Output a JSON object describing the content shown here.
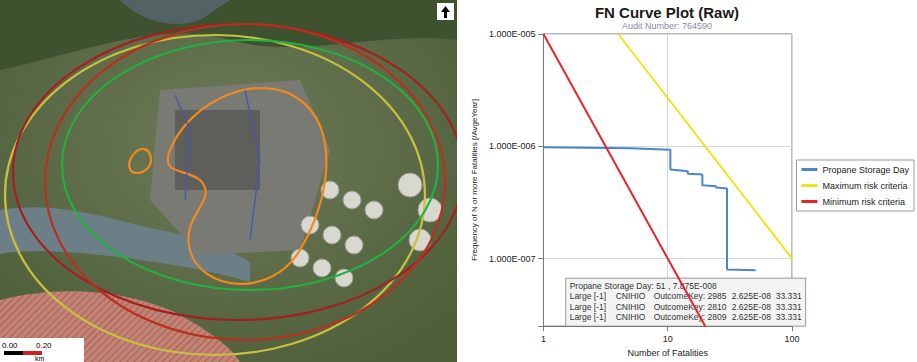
{
  "chart_data": {
    "type": "line",
    "title": "FN Curve Plot (Raw)",
    "subtitle": "Audit Number: 764590",
    "x_label": "Number of Fatalities",
    "y_label": "Frequency of N or more Fatalities [/AvgeYear]",
    "log": true,
    "grid": true,
    "legend": "right",
    "xlim": [
      1,
      100
    ],
    "xticks": [
      1,
      10,
      100
    ],
    "ylim": [
      2.5e-08,
      1e-05
    ],
    "yticks": [
      {
        "value": 1e-07,
        "label": "1.000E-007"
      },
      {
        "value": 1e-06,
        "label": "1.000E-006"
      },
      {
        "value": 1e-05,
        "label": "1.000E-005"
      }
    ],
    "series": [
      {
        "name": "Propane Storage Day",
        "color": "#4a86c8",
        "x": [
          1,
          5,
          10.5,
          10.5,
          14.5,
          14.5,
          19,
          19,
          24.5,
          24.5,
          30,
          30,
          51
        ],
        "values": [
          9.8e-07,
          9.6e-07,
          9.3e-07,
          6.2e-07,
          6e-07,
          5.7e-07,
          5.6e-07,
          4.5e-07,
          4.4e-07,
          4.3e-07,
          4.2e-07,
          8e-08,
          7.875e-08
        ]
      },
      {
        "name": "Maximum risk criteria",
        "color": "#f2e21c",
        "x": [
          4,
          100
        ],
        "values": [
          1e-05,
          1e-07
        ]
      },
      {
        "name": "Minimum risk criteria",
        "color": "#e8242a",
        "x": [
          1,
          20
        ],
        "values": [
          1e-05,
          2.5e-08
        ]
      }
    ],
    "annotation": {
      "x": 51,
      "y": 7.875e-08,
      "header": "Propane Storage Day: 51 , 7.875E-008",
      "rows": [
        [
          "Large [-1]",
          "CNIHIO",
          "OutcomeKey: 2985",
          "2.625E-08",
          "33.331"
        ],
        [
          "Large [-1]",
          "CNIHIO",
          "OutcomeKey: 2810",
          "2.625E-08",
          "33.331"
        ],
        [
          "Large [-1]",
          "CNIHIO",
          "OutcomeKey: 2809",
          "2.625E-08",
          "33.331"
        ]
      ]
    }
  },
  "map": {
    "scale_labels": [
      "0.00",
      "0.20"
    ],
    "scale_unit": "km"
  }
}
